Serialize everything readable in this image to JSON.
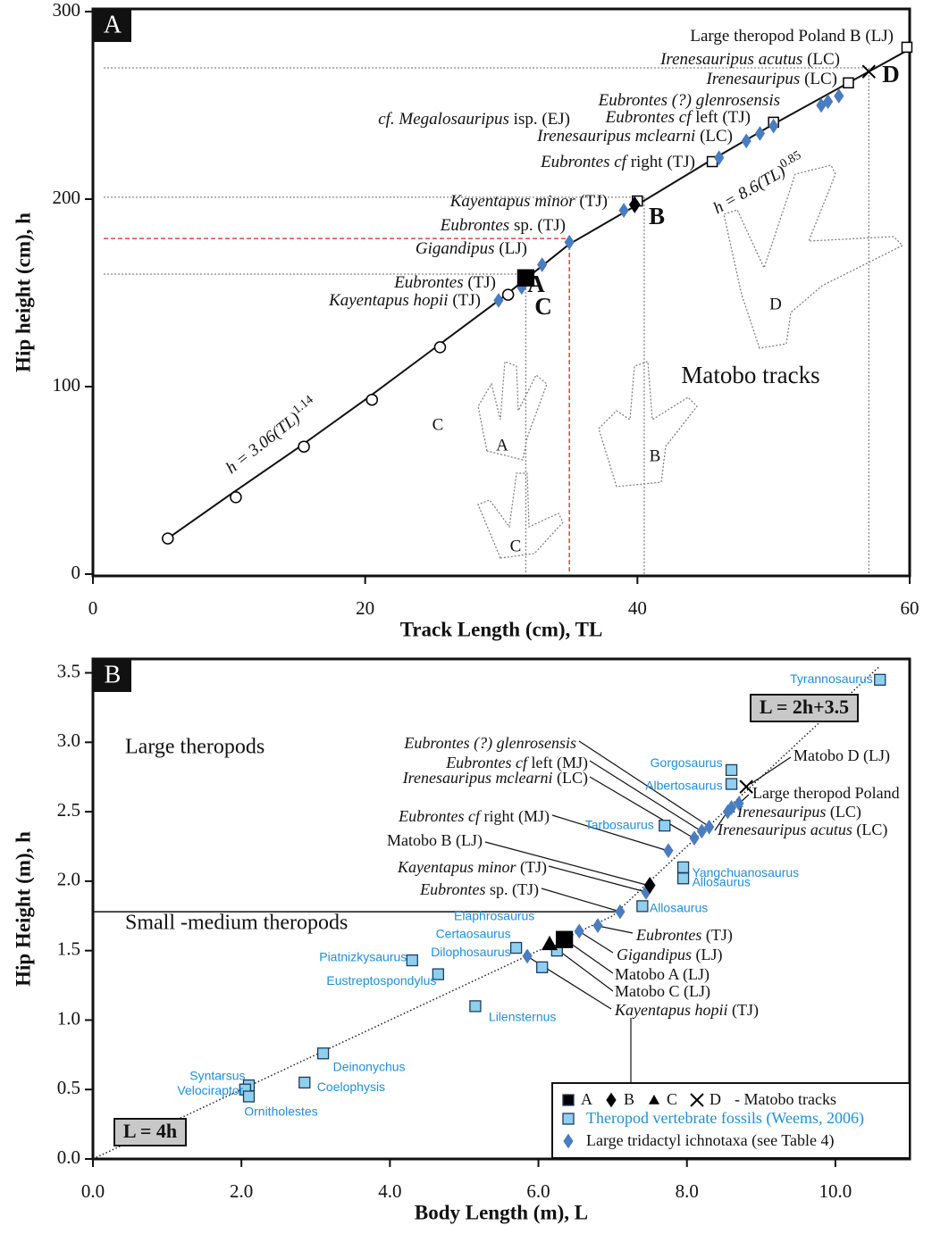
{
  "chart_data": [
    {
      "type": "line",
      "panel": "A",
      "xlabel": "Track Length (cm), TL",
      "ylabel": "Hip height (cm), h",
      "xlim": [
        0,
        60
      ],
      "ylim": [
        0,
        300
      ],
      "xticks": [
        0,
        20,
        40,
        60
      ],
      "yticks": [
        0,
        100,
        200,
        300
      ],
      "curve": {
        "x": [
          5.5,
          10,
          15,
          20,
          25,
          30,
          35,
          40,
          45,
          50,
          55,
          60
        ],
        "values": [
          19,
          42,
          67,
          93,
          120,
          147,
          176,
          197,
          219,
          240,
          260,
          280
        ]
      },
      "equations": [
        {
          "text": "h = 3.06(TL)",
          "exponent": "1.14"
        },
        {
          "text": "h = 8.6(TL)",
          "exponent": "0.85"
        }
      ],
      "guides": [
        {
          "x": 31.8,
          "y": 160,
          "color": "#888888"
        },
        {
          "x": 40.5,
          "y": 201,
          "color": "#888888"
        },
        {
          "x": 57,
          "y": 270,
          "color": "#888888"
        },
        {
          "x": 35,
          "y": 179,
          "color": "#e02020"
        }
      ],
      "series": [
        {
          "marker": "open-circle",
          "color": "#000000",
          "x": [
            5.5,
            10.5,
            15.5,
            20.5,
            25.5,
            30.5
          ],
          "values": [
            19,
            41,
            68,
            93,
            121,
            149
          ]
        },
        {
          "marker": "open-square",
          "color": "#000000",
          "x": [
            40,
            45.5,
            50,
            55.5,
            59.8
          ],
          "values": [
            199,
            220,
            241,
            262,
            281
          ]
        },
        {
          "marker": "diamond",
          "color": "#4a7cc0",
          "x": [
            29.8,
            31.5,
            33,
            35,
            39,
            46,
            48,
            49,
            50,
            53.5,
            54,
            54.8
          ],
          "values": [
            146,
            153,
            165,
            177,
            194,
            222,
            231,
            235,
            239,
            250,
            252,
            255
          ]
        },
        {
          "marker": "square",
          "color": "#000000",
          "x": [
            31.8
          ],
          "values": [
            158
          ]
        },
        {
          "marker": "diamond",
          "color": "#000000",
          "x": [
            39.8
          ],
          "values": [
            197
          ]
        },
        {
          "marker": "x",
          "color": "#000000",
          "x": [
            57
          ],
          "values": [
            268
          ]
        }
      ],
      "point_letters": [
        "A",
        "B",
        "C",
        "D"
      ],
      "annotations": [
        {
          "text": "Large theropod Poland B (LJ)"
        },
        {
          "italic": "Irenesauripus acutus",
          "text": " (LC)"
        },
        {
          "italic": "Irenesauripus",
          "text": " (LC)"
        },
        {
          "italic": "Eubrontes (?) glenrosensis"
        },
        {
          "italic": "cf. Megalosauripus",
          "text": " isp. (EJ)"
        },
        {
          "italic": "Eubrontes cf",
          "text": " left (TJ)"
        },
        {
          "italic": "Irenesauripus mclearni",
          "text": " (LC)"
        },
        {
          "italic": "Eubrontes cf",
          "text": " right (TJ)"
        },
        {
          "italic": "Kayentapus minor",
          "text": " (TJ)"
        },
        {
          "italic": "Eubrontes",
          "text": " sp. (TJ)"
        },
        {
          "italic": "Gigandipus",
          "text": " (LJ)"
        },
        {
          "italic": "Eubrontes",
          "text": " (TJ)"
        },
        {
          "italic": "Kayentapus hopii",
          "text": " (TJ)"
        }
      ],
      "region_label": "Matobo tracks",
      "track_labels": [
        "C",
        "A",
        "B",
        "C",
        "D"
      ]
    },
    {
      "type": "scatter",
      "panel": "B",
      "xlabel": "Body Length (m), L",
      "ylabel": "Hip Height (m), h",
      "xlim": [
        0,
        11
      ],
      "ylim": [
        0,
        3.6
      ],
      "xticks": [
        {
          "value": 0,
          "label": "0.0"
        },
        {
          "value": 2,
          "label": "2.0"
        },
        {
          "value": 4,
          "label": "4.0"
        },
        {
          "value": 6,
          "label": "6.0"
        },
        {
          "value": 8,
          "label": "8.0"
        },
        {
          "value": 10,
          "label": "10.0"
        }
      ],
      "yticks": [
        {
          "value": 0,
          "label": "0.0"
        },
        {
          "value": 0.5,
          "label": "0.5"
        },
        {
          "value": 1,
          "label": "1.0"
        },
        {
          "value": 1.5,
          "label": "1.5"
        },
        {
          "value": 2,
          "label": "2.0"
        },
        {
          "value": 2.5,
          "label": "2.5"
        },
        {
          "value": 3,
          "label": "3.0"
        },
        {
          "value": 3.5,
          "label": "3.5"
        }
      ],
      "fit_line": {
        "x": [
          0,
          7,
          10.6
        ],
        "values": [
          0,
          1.75,
          3.55
        ]
      },
      "divider": {
        "x": [
          0,
          7.1
        ],
        "values": [
          1.78,
          1.78
        ]
      },
      "equations": [
        "L = 2h+3.5",
        "L = 4h"
      ],
      "region_labels": [
        "Large theropods",
        "Small -medium theropods"
      ],
      "series": [
        {
          "name": "Theropod vertebrate fossils (Weems, 2006)",
          "marker": "square",
          "color": "#8fd0ef",
          "label_color": "#1e8fd8",
          "x": [
            10.6,
            8.6,
            8.6,
            7.7,
            7.95,
            7.95,
            7.4,
            6.25,
            5.7,
            6.05,
            4.3,
            4.65,
            5.15,
            3.1,
            2.85,
            2.1,
            2.05,
            2.1
          ],
          "values": [
            3.45,
            2.8,
            2.7,
            2.4,
            2.1,
            2.02,
            1.82,
            1.5,
            1.52,
            1.38,
            1.43,
            1.33,
            1.1,
            0.76,
            0.55,
            0.53,
            0.5,
            0.45
          ],
          "point_labels": [
            "Tyrannosaurus",
            "Gorgosaurus",
            "Albertosaurus",
            "Tarbosaurus",
            "Yangchuanosaurus",
            "Allosaurus",
            "Allosaurus",
            "Elaphrosaurus",
            "Certaosaurus",
            "Dilophosaurus",
            "Piatnizkysaurus",
            "Eustreptospondylus",
            "Lilensternus",
            "Deinonychus",
            "Coelophysis",
            "Syntarsus",
            "Velociraptor",
            "Ornitholestes"
          ]
        },
        {
          "name": "Large tridactyl ichnotaxa (see Table 4)",
          "marker": "diamond",
          "color": "#4a7cc0",
          "x": [
            5.85,
            6.55,
            6.8,
            7.1,
            7.45,
            7.75,
            8.1,
            8.2,
            8.3,
            8.55,
            8.6,
            8.7
          ],
          "values": [
            1.46,
            1.64,
            1.68,
            1.78,
            1.92,
            2.22,
            2.31,
            2.36,
            2.39,
            2.5,
            2.53,
            2.56
          ]
        },
        {
          "name": "A",
          "marker": "square",
          "color": "#000000",
          "x": [
            6.35
          ],
          "values": [
            1.58
          ]
        },
        {
          "name": "B",
          "marker": "diamond",
          "color": "#000000",
          "x": [
            7.5
          ],
          "values": [
            1.97
          ]
        },
        {
          "name": "C",
          "marker": "triangle",
          "color": "#000000",
          "x": [
            6.15
          ],
          "values": [
            1.55
          ]
        },
        {
          "name": "D",
          "marker": "x",
          "color": "#000000",
          "x": [
            8.8
          ],
          "values": [
            2.68
          ]
        }
      ],
      "legend_note": "- Matobo tracks",
      "annotations": [
        {
          "italic": "Eubrontes (?) glenrosensis"
        },
        {
          "italic": "Eubrontes cf",
          "text": " left (MJ)"
        },
        {
          "italic": "Irenesauripus mclearni",
          "text": " (LC)"
        },
        {
          "italic": "Eubrontes cf",
          "text": " right (MJ)"
        },
        {
          "text": "Matobo B (LJ)"
        },
        {
          "italic": "Kayentapus minor",
          "text": " (TJ)"
        },
        {
          "italic": "Eubrontes",
          "text": " sp. (TJ)"
        },
        {
          "text": "Large theropod Poland"
        },
        {
          "italic": "Irenesauripus",
          "text": " (LC)"
        },
        {
          "italic": "Irenesauripus acutus",
          "text": " (LC)"
        },
        {
          "text": "Matobo D (LJ)"
        },
        {
          "italic": "Eubrontes",
          "text": " (TJ)"
        },
        {
          "italic": "Gigandipus",
          "text": " (LJ)"
        },
        {
          "text": "Matobo A (LJ)"
        },
        {
          "text": "Matobo C (LJ)"
        },
        {
          "italic": "Kayentapus hopii",
          "text": " (TJ)"
        }
      ]
    }
  ]
}
